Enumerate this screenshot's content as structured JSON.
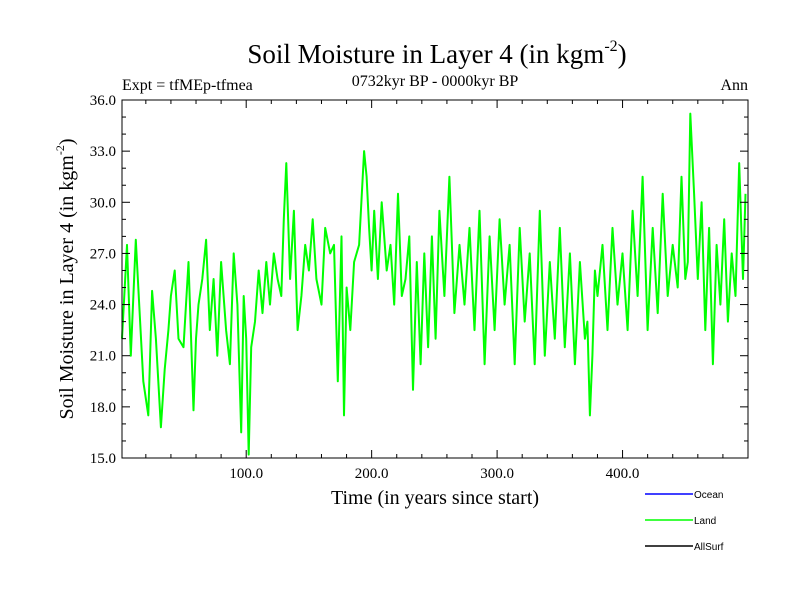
{
  "chart_data": {
    "type": "line",
    "title": "Soil Moisture in Layer 4 (in kgm",
    "title_superscript": "-2",
    "title_close": ")",
    "subtitle_left": "Expt = tfMEp-tfmea",
    "subtitle_center": "0732kyr BP - 0000kyr BP",
    "subtitle_right": "Ann",
    "xlabel": "Time (in years since start)",
    "ylabel": "Soil Moisture in Layer 4 (in kgm",
    "ylabel_superscript": "-2",
    "ylabel_close": ")",
    "xlim": [
      1,
      500
    ],
    "ylim": [
      15.0,
      36.0
    ],
    "x_ticks": [
      {
        "value": 100,
        "label": "100.0"
      },
      {
        "value": 200,
        "label": "200.0"
      },
      {
        "value": 300,
        "label": "300.0"
      },
      {
        "value": 400,
        "label": "400.0"
      }
    ],
    "y_ticks": [
      {
        "value": 15,
        "label": "15.0"
      },
      {
        "value": 18,
        "label": "18.0"
      },
      {
        "value": 21,
        "label": "21.0"
      },
      {
        "value": 24,
        "label": "24.0"
      },
      {
        "value": 27,
        "label": "27.0"
      },
      {
        "value": 30,
        "label": "30.0"
      },
      {
        "value": 33,
        "label": "33.0"
      },
      {
        "value": 36,
        "label": "36.0"
      }
    ],
    "legend": {
      "placement": "bottom-right",
      "entries": [
        {
          "name": "Ocean",
          "color": "#0000ff"
        },
        {
          "name": "Land",
          "color": "#00ff00"
        },
        {
          "name": "AllSurf",
          "color": "#000000"
        }
      ]
    },
    "series": [
      {
        "name": "Land",
        "color": "#00ff00",
        "x": [
          1,
          5,
          8,
          12,
          14,
          18,
          22,
          25,
          28,
          32,
          35,
          38,
          40,
          43,
          46,
          50,
          54,
          58,
          60,
          62,
          65,
          68,
          71,
          74,
          77,
          80,
          84,
          87,
          90,
          93,
          96,
          98,
          100,
          102,
          104,
          107,
          110,
          113,
          116,
          119,
          122,
          125,
          128,
          130,
          132,
          135,
          138,
          141,
          144,
          147,
          150,
          153,
          156,
          160,
          163,
          167,
          170,
          173,
          176,
          178,
          180,
          183,
          186,
          190,
          194,
          196,
          198,
          200,
          202,
          205,
          208,
          212,
          215,
          218,
          221,
          224,
          227,
          230,
          233,
          236,
          239,
          242,
          245,
          248,
          251,
          254,
          258,
          262,
          266,
          270,
          274,
          278,
          282,
          286,
          290,
          294,
          298,
          302,
          306,
          310,
          314,
          318,
          322,
          326,
          330,
          334,
          338,
          342,
          346,
          350,
          354,
          358,
          362,
          366,
          370,
          372,
          374,
          376,
          378,
          380,
          384,
          388,
          392,
          396,
          400,
          404,
          408,
          412,
          416,
          420,
          424,
          428,
          432,
          436,
          440,
          444,
          447,
          450,
          452,
          454,
          457,
          460,
          463,
          466,
          469,
          472,
          475,
          478,
          481,
          484,
          487,
          490,
          493,
          496,
          498
        ],
        "y": [
          22.0,
          27.5,
          21.0,
          27.8,
          25.0,
          19.5,
          17.5,
          24.8,
          22.0,
          16.8,
          20.2,
          22.5,
          24.5,
          26.0,
          22.0,
          21.5,
          26.5,
          17.8,
          22.0,
          24.0,
          25.5,
          27.8,
          22.5,
          25.5,
          21.0,
          26.5,
          22.5,
          20.5,
          27.0,
          24.0,
          16.5,
          24.5,
          22.0,
          15.2,
          21.5,
          23.0,
          26.0,
          23.5,
          26.5,
          24.0,
          27.0,
          25.5,
          24.5,
          29.0,
          32.3,
          25.5,
          29.5,
          22.5,
          24.5,
          27.5,
          26.0,
          29.0,
          25.5,
          24.0,
          28.5,
          27.0,
          27.5,
          19.5,
          28.0,
          17.5,
          25.0,
          22.5,
          26.5,
          27.5,
          33.0,
          31.5,
          28.5,
          26.0,
          29.5,
          25.5,
          30.0,
          26.0,
          27.5,
          24.0,
          30.5,
          24.5,
          25.5,
          28.0,
          19.0,
          26.5,
          20.5,
          27.0,
          21.5,
          28.0,
          22.0,
          29.5,
          24.5,
          31.5,
          23.5,
          27.5,
          24.0,
          28.5,
          22.5,
          29.5,
          20.5,
          28.0,
          22.5,
          29.0,
          24.0,
          27.5,
          20.5,
          28.5,
          23.0,
          27.0,
          20.5,
          29.5,
          21.0,
          26.5,
          22.0,
          28.5,
          21.5,
          27.0,
          20.5,
          26.5,
          22.0,
          23.0,
          17.5,
          21.0,
          26.0,
          24.5,
          27.5,
          22.5,
          28.5,
          24.0,
          27.0,
          22.5,
          29.5,
          24.5,
          31.5,
          22.5,
          28.5,
          23.5,
          30.5,
          24.5,
          27.5,
          25.0,
          31.5,
          25.5,
          26.5,
          35.2,
          30.5,
          25.5,
          30.0,
          22.5,
          28.5,
          20.5,
          27.5,
          24.0,
          29.0,
          23.0,
          27.0,
          24.5,
          32.3,
          25.5,
          30.5
        ]
      }
    ]
  }
}
